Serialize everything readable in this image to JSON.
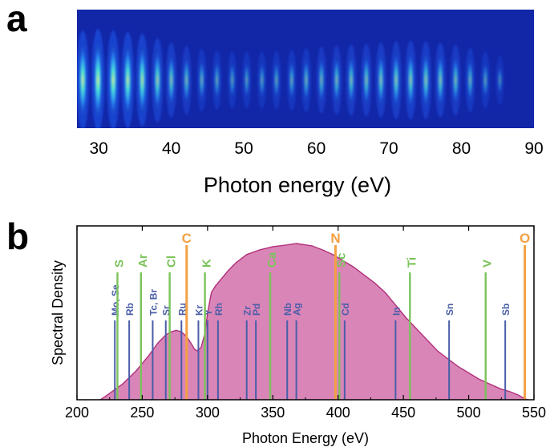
{
  "colors": {
    "spectrum_fill": "#d985b8",
    "spectrum_stroke": "#b0307a",
    "k_edge": "#7ac35a",
    "l_edge": "#4a5ea8",
    "light_elem": "#f3a043",
    "heatmap_bg": "#1226a8"
  },
  "panel_a": {
    "label": "a",
    "chart_data": {
      "type": "heatmap",
      "xlabel": "Photon energy (eV)",
      "xlim": [
        27,
        90
      ],
      "xticks": [
        "30",
        "40",
        "50",
        "60",
        "70",
        "80",
        "90"
      ],
      "harmonic_peaks_eV": [
        27.8,
        29.9,
        32.0,
        34.0,
        36.0,
        38.1,
        40.0,
        42.1,
        44.2,
        46.3,
        48.4,
        50.4,
        52.5,
        54.5,
        56.6,
        58.6,
        60.7,
        62.8,
        64.8,
        66.9,
        68.9,
        71.0,
        73.0,
        75.1,
        77.1,
        79.2,
        81.2,
        83.3,
        85.3
      ],
      "relative_intensity": [
        0.95,
        1.0,
        0.95,
        0.9,
        0.85,
        0.7,
        0.55,
        0.45,
        0.35,
        0.3,
        0.25,
        0.25,
        0.25,
        0.28,
        0.32,
        0.38,
        0.42,
        0.46,
        0.5,
        0.52,
        0.55,
        0.6,
        0.62,
        0.6,
        0.55,
        0.48,
        0.38,
        0.25,
        0.12
      ]
    }
  },
  "panel_b": {
    "label": "b",
    "chart_data": {
      "type": "area",
      "xlabel": "Photon Energy (eV)",
      "ylabel": "Spectral Density",
      "xlim": [
        200,
        550
      ],
      "ylim": [
        0,
        1
      ],
      "xticks": [
        "200",
        "250",
        "300",
        "350",
        "400",
        "450",
        "500",
        "550"
      ],
      "x": [
        218,
        225,
        235,
        245,
        255,
        262,
        268,
        272,
        276,
        280,
        284,
        288,
        290,
        292,
        295,
        298,
        300,
        303,
        306,
        310,
        316,
        322,
        330,
        340,
        350,
        360,
        368,
        372,
        380,
        388,
        396,
        404,
        412,
        420,
        428,
        436,
        444,
        452,
        460,
        468,
        476,
        484,
        492,
        500,
        508,
        516,
        524,
        532,
        538,
        542,
        545
      ],
      "y": [
        0.0,
        0.04,
        0.1,
        0.18,
        0.28,
        0.36,
        0.41,
        0.43,
        0.44,
        0.43,
        0.4,
        0.35,
        0.32,
        0.31,
        0.33,
        0.42,
        0.55,
        0.68,
        0.72,
        0.76,
        0.82,
        0.87,
        0.92,
        0.95,
        0.97,
        0.98,
        0.99,
        0.985,
        0.975,
        0.95,
        0.92,
        0.88,
        0.84,
        0.79,
        0.74,
        0.68,
        0.6,
        0.52,
        0.45,
        0.38,
        0.31,
        0.26,
        0.21,
        0.17,
        0.13,
        0.1,
        0.07,
        0.05,
        0.03,
        0.01,
        0.0
      ],
      "k_edges": [
        {
          "label": "S",
          "x": 231
        },
        {
          "label": "Ar",
          "x": 249
        },
        {
          "label": "Cl",
          "x": 271
        },
        {
          "label": "K",
          "x": 298
        },
        {
          "label": "Ca",
          "x": 348
        },
        {
          "label": "Sc",
          "x": 401
        },
        {
          "label": "Ti",
          "x": 455
        },
        {
          "label": "V",
          "x": 513
        }
      ],
      "l_edges": [
        {
          "label": "Mo, Se",
          "x": 229
        },
        {
          "label": "Rb",
          "x": 240
        },
        {
          "label": "Tc, Br",
          "x": 258
        },
        {
          "label": "Sr",
          "x": 268
        },
        {
          "label": "Ru",
          "x": 280
        },
        {
          "label": "Kr",
          "x": 293
        },
        {
          "label": "Y",
          "x": 300
        },
        {
          "label": "Rh",
          "x": 308
        },
        {
          "label": "Zr",
          "x": 330
        },
        {
          "label": "Pd",
          "x": 337
        },
        {
          "label": "Nb",
          "x": 361
        },
        {
          "label": "Ag",
          "x": 368
        },
        {
          "label": "Cd",
          "x": 405
        },
        {
          "label": "In",
          "x": 444
        },
        {
          "label": "Sn",
          "x": 485
        },
        {
          "label": "Sb",
          "x": 528
        }
      ],
      "light_elements": [
        {
          "label": "C",
          "x": 284
        },
        {
          "label": "N",
          "x": 398
        },
        {
          "label": "O",
          "x": 543
        }
      ]
    }
  }
}
